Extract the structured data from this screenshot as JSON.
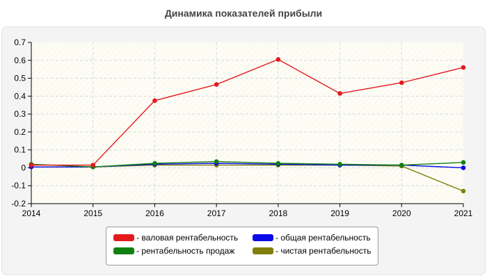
{
  "chart_data": {
    "type": "line",
    "title": "Динамика показателей прибыли",
    "x": [
      "2014",
      "2015",
      "2016",
      "2017",
      "2018",
      "2019",
      "2020",
      "2021"
    ],
    "ylim": [
      -0.2,
      0.7
    ],
    "yticks": [
      "0.7",
      "0.6",
      "0.5",
      "0.4",
      "0.3",
      "0.2",
      "0.1",
      "0",
      "-0.1",
      "-0.2"
    ],
    "grid": true,
    "legend_position": "bottom",
    "series": [
      {
        "name": "- валовая рентабельность",
        "color": "#e31a1c",
        "values": [
          0.015,
          0.015,
          0.375,
          0.465,
          0.605,
          0.415,
          0.475,
          0.56
        ]
      },
      {
        "name": "- рентабельность продаж",
        "color": "#118011",
        "values": [
          0.02,
          0.005,
          0.025,
          0.035,
          0.025,
          0.02,
          0.015,
          0.03
        ]
      },
      {
        "name": "- общая рентабельность",
        "color": "#0a0ae8",
        "values": [
          0.005,
          0.005,
          0.02,
          0.025,
          0.02,
          0.015,
          0.015,
          0.0
        ]
      },
      {
        "name": "- чистая рентабельность",
        "color": "#7f7f0a",
        "values": [
          0.005,
          0.005,
          0.015,
          0.015,
          0.015,
          0.015,
          0.01,
          -0.13
        ]
      }
    ]
  }
}
